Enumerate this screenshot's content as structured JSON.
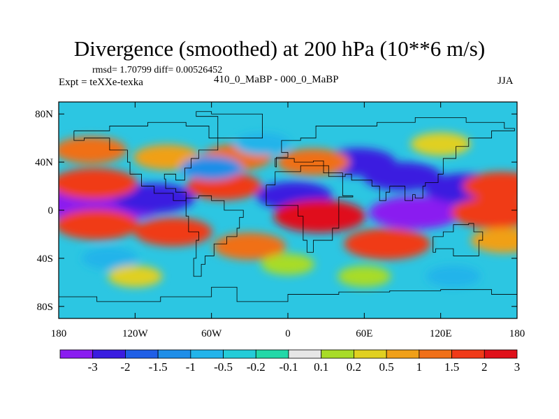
{
  "title": "Divergence (smoothed) at 200 hPa (10**6 m/s)",
  "stats": "rmsd= 1.70799 diff= 0.00526452",
  "experiment": "Expt = teXXe-texka",
  "subtitle": "410_0_MaBP - 000_0_MaBP",
  "season": "JJA",
  "chart_data": {
    "type": "heatmap",
    "title": "Divergence (smoothed) at 200 hPa (10**6 m/s)",
    "variable": "Divergence (smoothed)",
    "level": "200 hPa",
    "units": "10**6 m/s",
    "rmsd": 1.70799,
    "diff": 0.00526452,
    "experiment": "teXXe-texka",
    "comparison": "410_0_MaBP - 000_0_MaBP",
    "season": "JJA",
    "xlim": [
      -180,
      180
    ],
    "ylim": [
      -90,
      90
    ],
    "x_ticks": [
      {
        "value": -180,
        "label": "180"
      },
      {
        "value": -120,
        "label": "120W"
      },
      {
        "value": -60,
        "label": "60W"
      },
      {
        "value": 0,
        "label": "0"
      },
      {
        "value": 60,
        "label": "60E"
      },
      {
        "value": 120,
        "label": "120E"
      },
      {
        "value": 180,
        "label": "180"
      }
    ],
    "y_ticks": [
      {
        "value": 80,
        "label": "80N"
      },
      {
        "value": 40,
        "label": "40N"
      },
      {
        "value": 0,
        "label": "0"
      },
      {
        "value": -40,
        "label": "40S"
      },
      {
        "value": -80,
        "label": "80S"
      }
    ],
    "contour_levels": [
      -3,
      -2,
      -1.5,
      -1,
      -0.5,
      -0.2,
      -0.1,
      0.1,
      0.2,
      0.5,
      1,
      1.5,
      2,
      3
    ],
    "colorbar_labels": [
      "-3",
      "-2",
      "-1.5",
      "-1",
      "-0.5",
      "-0.2",
      "-0.1",
      "0.1",
      "0.2",
      "0.5",
      "1",
      "1.5",
      "2",
      "3"
    ],
    "colorbar_colors": [
      "#8a1cf0",
      "#3a1ce0",
      "#1f5fe6",
      "#1e8ee8",
      "#22b4ea",
      "#24ccd8",
      "#22d8a8",
      "#e6e6e6",
      "#a8dc28",
      "#e0d020",
      "#f0a018",
      "#f07018",
      "#f03a18",
      "#e0101a"
    ],
    "field_features": [
      {
        "lon": -160,
        "lat": 5,
        "value": -3.2
      },
      {
        "lon": -130,
        "lat": 6,
        "value": -3.1
      },
      {
        "lon": -105,
        "lat": 10,
        "value": -2.4
      },
      {
        "lon": 100,
        "lat": -2,
        "value": -3.2
      },
      {
        "lon": 140,
        "lat": 18,
        "value": -2.6
      },
      {
        "lon": 55,
        "lat": 40,
        "value": -2.0
      },
      {
        "lon": 90,
        "lat": 28,
        "value": -2.2
      },
      {
        "lon": 5,
        "lat": 12,
        "value": -2.0
      },
      {
        "lon": -152,
        "lat": 22,
        "value": 2.8
      },
      {
        "lon": -150,
        "lat": -12,
        "value": 2.6
      },
      {
        "lon": -90,
        "lat": -18,
        "value": 2.2
      },
      {
        "lon": 25,
        "lat": -5,
        "value": 3.2
      },
      {
        "lon": 78,
        "lat": -28,
        "value": 2.8
      },
      {
        "lon": 162,
        "lat": -2,
        "value": 2.8
      },
      {
        "lon": 168,
        "lat": 20,
        "value": 2.2
      },
      {
        "lon": -50,
        "lat": 20,
        "value": 2.0
      },
      {
        "lon": -30,
        "lat": -30,
        "value": 1.8
      },
      {
        "lon": -40,
        "lat": 44,
        "value": 1.6
      },
      {
        "lon": -155,
        "lat": 50,
        "value": 1.8
      },
      {
        "lon": -95,
        "lat": 44,
        "value": 1.4
      },
      {
        "lon": 20,
        "lat": 40,
        "value": 1.8
      },
      {
        "lon": 170,
        "lat": -25,
        "value": 1.4
      },
      {
        "lon": -60,
        "lat": 35,
        "value": -1.0
      },
      {
        "lon": -20,
        "lat": 55,
        "value": -0.6
      },
      {
        "lon": 120,
        "lat": 55,
        "value": 0.9
      },
      {
        "lon": 130,
        "lat": -55,
        "value": -0.5
      },
      {
        "lon": -140,
        "lat": -40,
        "value": -0.6
      },
      {
        "lon": 0,
        "lat": -45,
        "value": 0.4
      },
      {
        "lon": -120,
        "lat": -55,
        "value": 0.5
      },
      {
        "lon": 60,
        "lat": -55,
        "value": 0.4
      }
    ],
    "colorbar_orientation": "horizontal",
    "colorbar_position": "bottom"
  }
}
